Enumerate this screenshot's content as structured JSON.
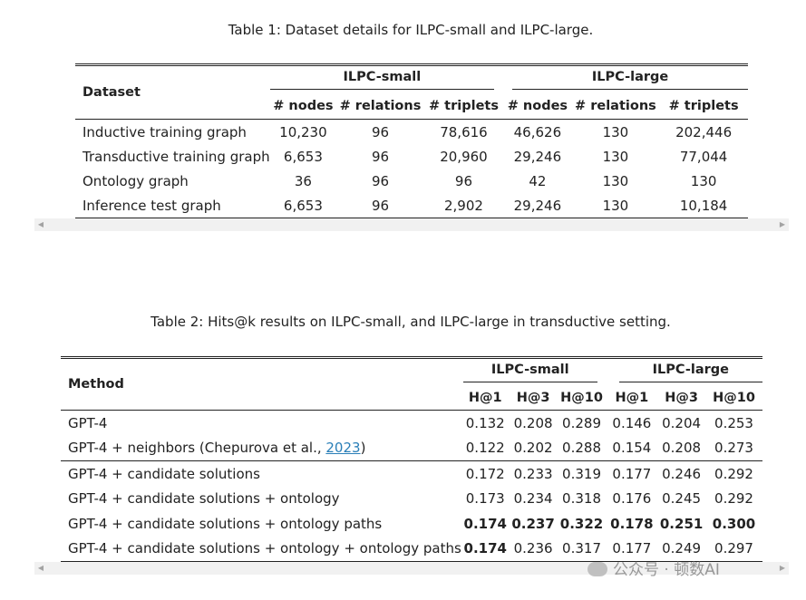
{
  "table1": {
    "caption": "Table 1: Dataset details for ILPC-small and ILPC-large.",
    "row_header": "Dataset",
    "groups": [
      "ILPC-small",
      "ILPC-large"
    ],
    "subheaders": [
      "# nodes",
      "# relations",
      "# triplets",
      "# nodes",
      "# relations",
      "# triplets"
    ],
    "rows": [
      {
        "label": "Inductive training graph",
        "values": [
          "10,230",
          "96",
          "78,616",
          "46,626",
          "130",
          "202,446"
        ]
      },
      {
        "label": "Transductive training graph",
        "values": [
          "6,653",
          "96",
          "20,960",
          "29,246",
          "130",
          "77,044"
        ]
      },
      {
        "label": "Ontology graph",
        "values": [
          "36",
          "96",
          "96",
          "42",
          "130",
          "130"
        ]
      },
      {
        "label": "Inference test graph",
        "values": [
          "6,653",
          "96",
          "2,902",
          "29,246",
          "130",
          "10,184"
        ]
      }
    ]
  },
  "table2": {
    "caption": "Table 2: Hits@k results on ILPC-small, and ILPC-large in transductive setting.",
    "row_header": "Method",
    "groups": [
      "ILPC-small",
      "ILPC-large"
    ],
    "subheaders": [
      "H@1",
      "H@3",
      "H@10",
      "H@1",
      "H@3",
      "H@10"
    ],
    "rows": [
      {
        "label": "GPT-4",
        "values": [
          "0.132",
          "0.208",
          "0.289",
          "0.146",
          "0.204",
          "0.253"
        ]
      },
      {
        "label_prefix": "GPT-4 + neighbors (Chepurova et al., ",
        "citation": "2023",
        "label_suffix": ")",
        "values": [
          "0.122",
          "0.202",
          "0.288",
          "0.154",
          "0.208",
          "0.273"
        ]
      },
      {
        "label": "GPT-4 + candidate solutions",
        "values": [
          "0.172",
          "0.233",
          "0.319",
          "0.177",
          "0.246",
          "0.292"
        ]
      },
      {
        "label": "GPT-4 + candidate solutions + ontology",
        "values": [
          "0.173",
          "0.234",
          "0.318",
          "0.176",
          "0.245",
          "0.292"
        ]
      },
      {
        "label": "GPT-4 + candidate solutions + ontology paths",
        "values": [
          "0.174",
          "0.237",
          "0.322",
          "0.178",
          "0.251",
          "0.300"
        ]
      },
      {
        "label": "GPT-4 + candidate solutions + ontology + ontology paths",
        "values": [
          "0.174",
          "0.236",
          "0.317",
          "0.177",
          "0.249",
          "0.297"
        ]
      }
    ]
  },
  "watermark": "公众号 · 顿数AI"
}
